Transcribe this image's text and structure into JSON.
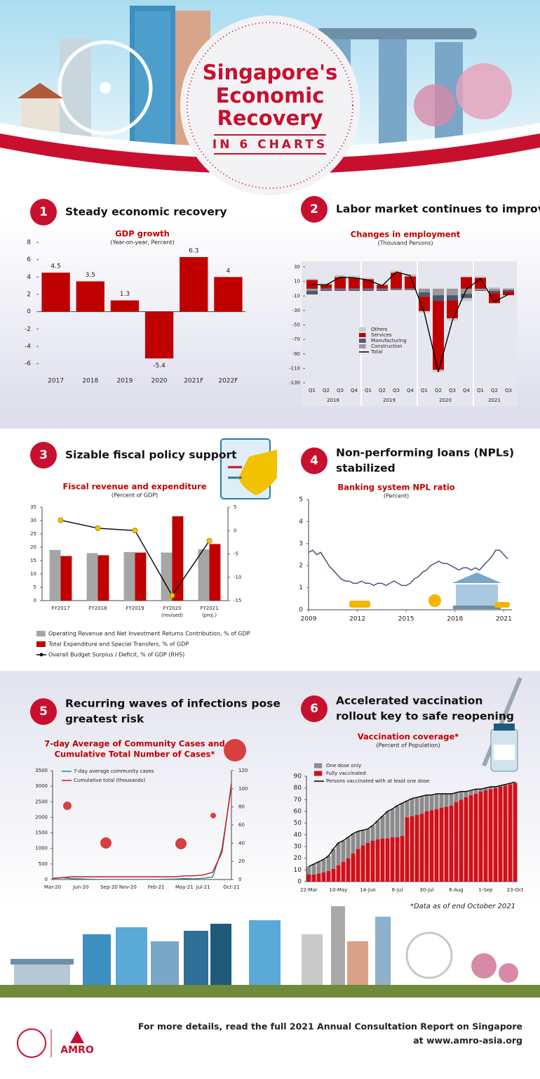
{
  "header": {
    "title": [
      "Singapore's",
      "Economic",
      "Recovery"
    ],
    "subtitle": "IN 6 CHARTS"
  },
  "sections": [
    {
      "number": "1",
      "title": [
        "Steady economic recovery"
      ]
    },
    {
      "number": "2",
      "title": [
        "Labor market continues to improve"
      ]
    },
    {
      "number": "3",
      "title": [
        "Sizable fiscal policy support"
      ]
    },
    {
      "number": "4",
      "title": [
        "Non-performing loans (NPLs)",
        "stabilized"
      ]
    },
    {
      "number": "5",
      "title": [
        "Recurring waves of infections pose",
        "greatest risk"
      ]
    },
    {
      "number": "6",
      "title": [
        "Accelerated vaccination",
        "rollout key to safe reopening"
      ]
    }
  ],
  "chart_data": [
    {
      "type": "bar",
      "title": "GDP growth",
      "subtitle": "(Year-on-year, Percent)",
      "categories": [
        "2017",
        "2018",
        "2019",
        "2020",
        "2021F",
        "2022F"
      ],
      "values": [
        4.5,
        3.5,
        1.3,
        -5.4,
        6.3,
        4
      ],
      "color": "#c00000",
      "show_values": true,
      "ylim": [
        -7,
        8
      ],
      "yticks": [
        -6,
        -4,
        -2,
        0,
        2,
        4,
        6,
        8
      ]
    },
    {
      "type": "stacked_bar",
      "title": "Changes in employment",
      "subtitle": "(Thousand Persons)",
      "categories": [
        "Q1",
        "Q2",
        "Q3",
        "Q4",
        "Q1",
        "Q2",
        "Q3",
        "Q4",
        "Q1",
        "Q2",
        "Q3",
        "Q4",
        "Q1",
        "Q2",
        "Q3"
      ],
      "groups": [
        {
          "name": "2018",
          "size": 4
        },
        {
          "name": "2019",
          "size": 4
        },
        {
          "name": "2020",
          "size": 4
        },
        {
          "name": "2021",
          "size": 3
        }
      ],
      "series": [
        {
          "name": "Others",
          "type": "bar",
          "color": "#c9c9c9",
          "values": [
            2,
            2,
            3,
            3,
            2,
            2,
            3,
            3,
            -2,
            -3,
            -3,
            -4,
            2,
            2,
            1
          ]
        },
        {
          "name": "Services",
          "type": "bar",
          "color": "#c00000",
          "values": [
            12,
            6,
            16,
            15,
            13,
            5,
            22,
            17,
            -20,
            -95,
            -25,
            16,
            15,
            -14,
            -5
          ]
        },
        {
          "name": "Manufacturing",
          "type": "bar",
          "color": "#4a5a70",
          "values": [
            -5,
            -2,
            -2,
            -2,
            -2,
            -2,
            -1,
            -1,
            -6,
            -8,
            -7,
            -6,
            -1,
            -3,
            -2
          ]
        },
        {
          "name": "Construction",
          "type": "bar",
          "color": "#9a9a9a",
          "values": [
            -3,
            -1,
            -1,
            -1,
            -1,
            -1,
            -1,
            -1,
            -5,
            -9,
            -9,
            -7,
            -2,
            -3,
            -2
          ]
        },
        {
          "name": "Total",
          "type": "line",
          "color": "#000000",
          "values": [
            6,
            5,
            16,
            15,
            12,
            4,
            23,
            18,
            -33,
            -115,
            -44,
            -1,
            14,
            -18,
            -8
          ]
        }
      ],
      "ylim": [
        -130,
        30
      ],
      "yticks": [
        -130,
        -110,
        -90,
        -70,
        -50,
        -30,
        -10,
        10,
        30
      ]
    },
    {
      "type": "bar",
      "title": "Fiscal revenue and expenditure",
      "subtitle": "(Percent of GDP)",
      "categories": [
        [
          "FY2017"
        ],
        [
          "FY2018"
        ],
        [
          "FY2019"
        ],
        [
          "FY2020",
          "(revised)"
        ],
        [
          "FY2021",
          "(proj.)"
        ]
      ],
      "series": [
        {
          "name": "Operating Revenue and Net Investment Returns Contribution, % of GDP",
          "type": "bar",
          "color": "#a6a6a6",
          "values": [
            19,
            17.8,
            18.2,
            18,
            19.2
          ]
        },
        {
          "name": "Total Expenditure and Special Transfers, % of GDP",
          "type": "bar",
          "color": "#c00000",
          "values": [
            16.7,
            17,
            18,
            31.6,
            21.2
          ]
        },
        {
          "name": "Overall Budget Surplus / Deficit, % of GDP (RHS)",
          "type": "line",
          "axis": "y2",
          "color": "#000000",
          "marker": "#f2c200",
          "values": [
            2.2,
            0.5,
            0,
            -13.9,
            -2.2
          ]
        }
      ],
      "ylim": [
        0,
        35
      ],
      "yticks": [
        0,
        5,
        10,
        15,
        20,
        25,
        30,
        35
      ],
      "y2lim": [
        -15,
        5
      ],
      "y2ticks": [
        -15,
        -10,
        -5,
        0,
        5
      ]
    },
    {
      "type": "line",
      "title": "Banking system NPL ratio",
      "subtitle": "(Percent)",
      "color": "#3a4a6a",
      "x": [
        2009,
        2009.25,
        2009.5,
        2009.75,
        2010,
        2010.25,
        2010.5,
        2010.75,
        2011,
        2011.25,
        2011.5,
        2011.75,
        2012,
        2012.25,
        2012.5,
        2012.75,
        2013,
        2013.25,
        2013.5,
        2013.75,
        2014,
        2014.25,
        2014.5,
        2014.75,
        2015,
        2015.25,
        2015.5,
        2015.75,
        2016,
        2016.25,
        2016.5,
        2016.75,
        2017,
        2017.25,
        2017.5,
        2017.75,
        2018,
        2018.25,
        2018.5,
        2018.75,
        2019,
        2019.25,
        2019.5,
        2019.75,
        2020,
        2020.25,
        2020.5,
        2020.75,
        2021,
        2021.25
      ],
      "values": [
        2.6,
        2.7,
        2.5,
        2.6,
        2.3,
        2.0,
        1.8,
        1.6,
        1.4,
        1.3,
        1.3,
        1.2,
        1.2,
        1.3,
        1.2,
        1.2,
        1.1,
        1.2,
        1.2,
        1.1,
        1.2,
        1.3,
        1.2,
        1.1,
        1.1,
        1.2,
        1.4,
        1.5,
        1.7,
        1.8,
        2.0,
        2.1,
        2.2,
        2.1,
        2.1,
        2.0,
        1.9,
        1.8,
        1.9,
        1.9,
        1.8,
        1.9,
        1.8,
        2.0,
        2.2,
        2.4,
        2.7,
        2.7,
        2.5,
        2.3
      ],
      "xlim": [
        2009,
        2021.5
      ],
      "xticks": [
        2009,
        2012,
        2015,
        2018,
        2021
      ],
      "ylim": [
        0,
        5
      ],
      "yticks": [
        0,
        1,
        2,
        3,
        4,
        5
      ]
    },
    {
      "type": "line",
      "title": [
        "7-day Average of Community Cases and",
        "Cumulative Total Number of Cases*"
      ],
      "categories": [
        "Mar-20",
        null,
        null,
        "Jun-20",
        null,
        null,
        "Sep-20",
        null,
        "Nov-20",
        null,
        null,
        "Feb-21",
        null,
        null,
        "May-21",
        null,
        "Jul-21",
        null,
        null,
        "Oct-21"
      ],
      "series": [
        {
          "name": "7-day average community cases",
          "type": "line",
          "color": "#1f8a8a",
          "values": [
            40,
            60,
            30,
            20,
            10,
            5,
            5,
            5,
            5,
            5,
            5,
            5,
            10,
            15,
            30,
            20,
            40,
            80,
            1000,
            3000
          ]
        },
        {
          "name": "Cumulative total (thousands)",
          "type": "line",
          "axis": "y2",
          "color": "#d0101a",
          "values": [
            1,
            2,
            3,
            3,
            3,
            3,
            3,
            3,
            3,
            3,
            3,
            3,
            3,
            3,
            4,
            4,
            5,
            8,
            30,
            106
          ]
        }
      ],
      "ylim": [
        0,
        3500
      ],
      "yticks": [
        0,
        500,
        1000,
        1500,
        2000,
        2500,
        3000,
        3500
      ],
      "y2lim": [
        0,
        120
      ],
      "y2ticks": [
        0,
        20,
        40,
        60,
        80,
        100,
        120
      ]
    },
    {
      "type": "stacked_bar",
      "title": "Vaccination coverage*",
      "subtitle": "(Percent of Population)",
      "categories": [
        "22-Mar",
        null,
        null,
        null,
        null,
        null,
        "10-May",
        null,
        null,
        null,
        null,
        null,
        "14-Jun",
        null,
        null,
        null,
        null,
        null,
        "6-Jul",
        null,
        null,
        null,
        null,
        null,
        "30-Jul",
        null,
        null,
        null,
        null,
        null,
        "6-Aug",
        null,
        null,
        null,
        null,
        null,
        "1-Sep",
        null,
        null,
        null,
        null,
        null,
        "23-Oct"
      ],
      "series": [
        {
          "name": "One dose only",
          "type": "bar",
          "color": "#8c8c8c",
          "values": [
            7,
            9,
            10,
            11,
            13,
            17,
            19,
            18,
            18,
            17,
            15,
            13,
            12,
            13,
            16,
            19,
            23,
            24,
            27,
            28,
            14,
            15,
            15,
            15,
            14,
            13,
            13,
            12,
            11,
            10,
            8,
            7,
            5,
            4,
            4,
            2,
            2,
            2,
            1,
            1,
            1,
            1,
            1
          ]
        },
        {
          "name": "Fully vaccinated",
          "type": "bar",
          "color": "#d0101a",
          "values": [
            6,
            6,
            7,
            8,
            9,
            11,
            14,
            17,
            20,
            24,
            28,
            31,
            33,
            35,
            36,
            37,
            37,
            38,
            38,
            39,
            55,
            56,
            57,
            58,
            60,
            61,
            62,
            63,
            64,
            65,
            68,
            70,
            72,
            74,
            75,
            77,
            78,
            79,
            80,
            81,
            82,
            83,
            84
          ]
        },
        {
          "name": "Persons vaccinated with at least one dose",
          "type": "line",
          "color": "#000000",
          "values": [
            13,
            15,
            17,
            19,
            22,
            28,
            33,
            35,
            38,
            41,
            43,
            44,
            45,
            48,
            52,
            56,
            60,
            62,
            65,
            67,
            69,
            71,
            72,
            73,
            74,
            74,
            75,
            75,
            75,
            75,
            76,
            77,
            77,
            78,
            79,
            79,
            80,
            81,
            81,
            82,
            83,
            84,
            85
          ]
        }
      ],
      "ylim": [
        0,
        90
      ],
      "yticks": [
        0,
        10,
        20,
        30,
        40,
        50,
        60,
        70,
        80,
        90
      ]
    }
  ],
  "footnote": "*Data as of end October 2021",
  "footer": {
    "text": [
      "For more details, read the full 2021 Annual Consultation Report on Singapore",
      "at www.amro-asia.org"
    ],
    "logo": "AMRO"
  }
}
